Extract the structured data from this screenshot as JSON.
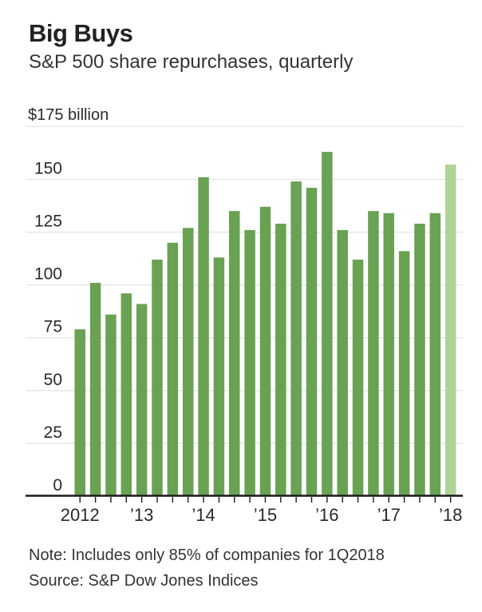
{
  "header": {
    "title": "Big Buys",
    "subtitle": "S&P 500 share repurchases, quarterly"
  },
  "chart_data": {
    "type": "bar",
    "title": "Big Buys",
    "subtitle": "S&P 500 share repurchases, quarterly",
    "unit_label": "$175 billion",
    "ylim": [
      0,
      175
    ],
    "yticks": [
      0,
      25,
      50,
      75,
      100,
      125,
      150
    ],
    "grid": true,
    "legend_position": "none",
    "categories": [
      "2012 Q1",
      "2012 Q2",
      "2012 Q3",
      "2012 Q4",
      "2013 Q1",
      "2013 Q2",
      "2013 Q3",
      "2013 Q4",
      "2014 Q1",
      "2014 Q2",
      "2014 Q3",
      "2014 Q4",
      "2015 Q1",
      "2015 Q2",
      "2015 Q3",
      "2015 Q4",
      "2016 Q1",
      "2016 Q2",
      "2016 Q3",
      "2016 Q4",
      "2017 Q1",
      "2017 Q2",
      "2017 Q3",
      "2017 Q4",
      "2018 Q1"
    ],
    "values": [
      79,
      101,
      86,
      96,
      91,
      112,
      120,
      127,
      151,
      113,
      135,
      126,
      137,
      129,
      149,
      146,
      163,
      126,
      112,
      135,
      134,
      116,
      129,
      134,
      157
    ],
    "bar_color": "#69a252",
    "highlight_color": "#b0d396",
    "highlight_index": 24,
    "xtick_labels": [
      {
        "index": 0,
        "label": "2012"
      },
      {
        "index": 4,
        "label": "’13"
      },
      {
        "index": 8,
        "label": "’14"
      },
      {
        "index": 12,
        "label": "’15"
      },
      {
        "index": 16,
        "label": "’16"
      },
      {
        "index": 20,
        "label": "’17"
      },
      {
        "index": 24,
        "label": "’18"
      }
    ],
    "colors": {
      "gridline": "#e4e4e4",
      "axis": "#1a1a1a",
      "tick_text": "#2a2a2a"
    }
  },
  "footer": {
    "note": "Note: Includes only 85% of companies for 1Q2018",
    "source": "Source: S&P Dow Jones Indices"
  }
}
